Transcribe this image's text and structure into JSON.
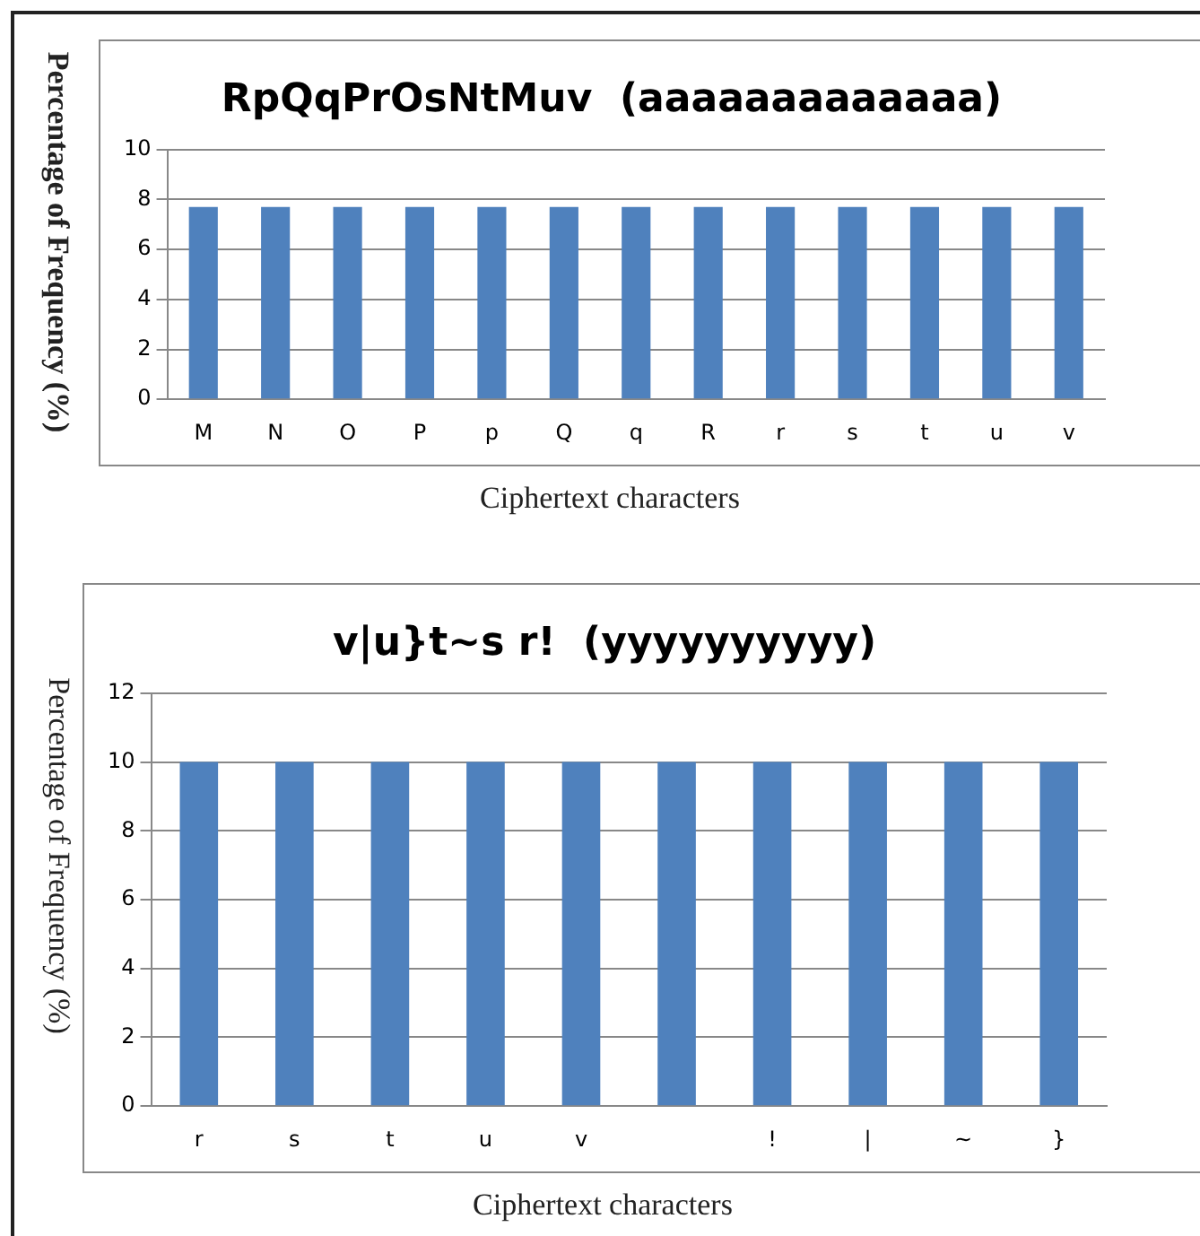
{
  "chart_data": [
    {
      "type": "bar",
      "title": "RpQqPrOsNtMuv  (aaaaaaaaaaaaa)",
      "xlabel": "Ciphertext characters",
      "ylabel": "Percentage of Frequency (%)",
      "categories": [
        "M",
        "N",
        "O",
        "P",
        "p",
        "Q",
        "q",
        "R",
        "r",
        "s",
        "t",
        "u",
        "v"
      ],
      "values": [
        7.7,
        7.7,
        7.7,
        7.7,
        7.7,
        7.7,
        7.7,
        7.7,
        7.7,
        7.7,
        7.7,
        7.7,
        7.7
      ],
      "color": "#4f81bd",
      "ylim": [
        0,
        10
      ],
      "yticks": [
        0,
        2,
        4,
        6,
        8,
        10
      ],
      "grid": "y",
      "legend": false
    },
    {
      "type": "bar",
      "title": "v|u}t~s r!  (yyyyyyyyyy)",
      "xlabel": "Ciphertext characters",
      "ylabel": "Percentage of Frequency (%)",
      "categories": [
        "r",
        "s",
        "t",
        "u",
        "v",
        null,
        "!",
        "|",
        "~",
        "}"
      ],
      "values": [
        10,
        10,
        10,
        10,
        10,
        10,
        10,
        10,
        10,
        10
      ],
      "color": "#4f81bd",
      "ylim": [
        0,
        12
      ],
      "yticks": [
        0,
        2,
        4,
        6,
        8,
        10,
        12
      ],
      "grid": "y",
      "legend": false
    }
  ]
}
